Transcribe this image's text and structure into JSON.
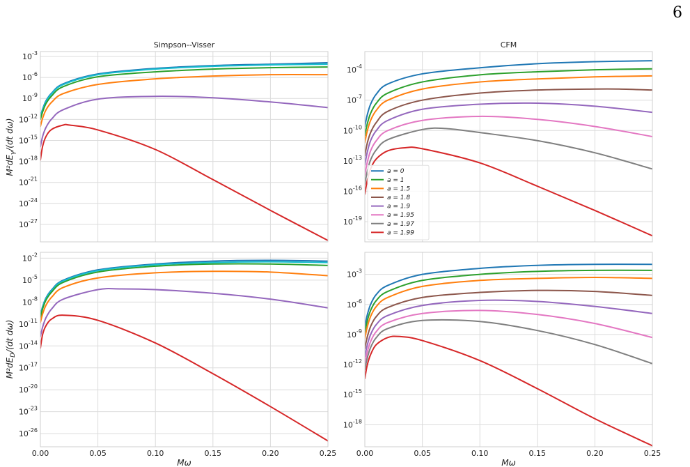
{
  "page_number": "6",
  "chart_data": [
    {
      "type": "line",
      "title": "Simpson--Visser",
      "xlabel": "",
      "ylabel": "M²dE_γ/(dt dω)",
      "yscale": "log",
      "xlim": [
        0,
        0.25
      ],
      "ylim_exp": [
        -29.5,
        -2.3
      ],
      "xticks": [
        "",
        "",
        "",
        "",
        "",
        ""
      ],
      "yticks_exp": [
        -3,
        -6,
        -9,
        -12,
        -15,
        -18,
        -21,
        -24,
        -27
      ],
      "grid": true,
      "series": [
        {
          "color": "#1f77b4",
          "x": [
            0,
            0.002,
            0.005,
            0.01,
            0.02,
            0.05,
            0.1,
            0.15,
            0.2,
            0.25
          ],
          "y_exp": [
            -11.6,
            -10.5,
            -9.3,
            -8.2,
            -6.9,
            -5.5,
            -4.7,
            -4.3,
            -4.1,
            -3.9
          ]
        },
        {
          "color": "#17becf",
          "x": [
            0,
            0.002,
            0.005,
            0.01,
            0.02,
            0.05,
            0.1,
            0.15,
            0.2,
            0.25
          ],
          "y_exp": [
            -11.7,
            -10.6,
            -9.4,
            -8.3,
            -7.0,
            -5.6,
            -4.8,
            -4.4,
            -4.2,
            -4.1
          ]
        },
        {
          "color": "#2ca02c",
          "x": [
            0,
            0.002,
            0.005,
            0.01,
            0.02,
            0.05,
            0.1,
            0.15,
            0.2,
            0.25
          ],
          "y_exp": [
            -12.0,
            -10.9,
            -9.7,
            -8.6,
            -7.3,
            -5.9,
            -5.2,
            -4.8,
            -4.6,
            -4.5
          ]
        },
        {
          "color": "#ff7f0e",
          "x": [
            0,
            0.002,
            0.005,
            0.01,
            0.02,
            0.05,
            0.1,
            0.15,
            0.2,
            0.25
          ],
          "y_exp": [
            -13.0,
            -11.8,
            -10.6,
            -9.5,
            -8.3,
            -7.0,
            -6.2,
            -5.8,
            -5.6,
            -5.6
          ]
        },
        {
          "color": "#9467bd",
          "x": [
            0,
            0.002,
            0.005,
            0.01,
            0.02,
            0.05,
            0.1,
            0.15,
            0.2,
            0.25
          ],
          "y_exp": [
            -15.9,
            -14.4,
            -13.1,
            -11.9,
            -10.6,
            -9.1,
            -8.7,
            -8.9,
            -9.5,
            -10.3
          ]
        },
        {
          "color": "#d62728",
          "x": [
            0,
            0.002,
            0.005,
            0.01,
            0.02,
            0.025,
            0.05,
            0.1,
            0.15,
            0.2,
            0.25
          ],
          "y_exp": [
            -17.8,
            -15.8,
            -14.4,
            -13.4,
            -12.8,
            -12.8,
            -13.5,
            -16.3,
            -20.6,
            -25.0,
            -29.3
          ]
        }
      ]
    },
    {
      "type": "line",
      "title": "CFM",
      "xlabel": "",
      "ylabel": "",
      "yscale": "log",
      "xlim": [
        0,
        0.25
      ],
      "ylim_exp": [
        -21.0,
        -2.2
      ],
      "xticks": [
        "",
        "",
        "",
        "",
        "",
        ""
      ],
      "yticks_exp": [
        -4,
        -7,
        -10,
        -13,
        -16,
        -19
      ],
      "grid": true,
      "legend": {
        "placement": "lower-left",
        "entries": [
          {
            "label": "a = 0",
            "color": "#1f77b4"
          },
          {
            "label": "a = 1",
            "color": "#2ca02c"
          },
          {
            "label": "a = 1.5",
            "color": "#ff7f0e"
          },
          {
            "label": "a = 1.8",
            "color": "#8c564b"
          },
          {
            "label": "a = 1.9",
            "color": "#9467bd"
          },
          {
            "label": "a = 1.95",
            "color": "#e377c2"
          },
          {
            "label": "a = 1.97",
            "color": "#7f7f7f"
          },
          {
            "label": "a = 1.99",
            "color": "#d62728"
          }
        ]
      },
      "series": [
        {
          "color": "#1f77b4",
          "x": [
            0,
            0.002,
            0.005,
            0.01,
            0.02,
            0.05,
            0.1,
            0.15,
            0.2,
            0.25
          ],
          "y_exp": [
            -9.6,
            -8.5,
            -7.4,
            -6.4,
            -5.4,
            -4.4,
            -3.8,
            -3.4,
            -3.2,
            -3.1
          ]
        },
        {
          "color": "#2ca02c",
          "x": [
            0,
            0.002,
            0.005,
            0.01,
            0.02,
            0.05,
            0.1,
            0.15,
            0.2,
            0.25
          ],
          "y_exp": [
            -10.5,
            -9.4,
            -8.3,
            -7.3,
            -6.3,
            -5.2,
            -4.5,
            -4.2,
            -4.0,
            -3.9
          ]
        },
        {
          "color": "#ff7f0e",
          "x": [
            0,
            0.002,
            0.005,
            0.01,
            0.02,
            0.05,
            0.1,
            0.15,
            0.2,
            0.25
          ],
          "y_exp": [
            -11.2,
            -10.1,
            -9.0,
            -8.0,
            -7.0,
            -5.9,
            -5.2,
            -4.9,
            -4.7,
            -4.6
          ]
        },
        {
          "color": "#8c564b",
          "x": [
            0,
            0.002,
            0.005,
            0.01,
            0.02,
            0.05,
            0.1,
            0.15,
            0.2,
            0.22,
            0.25
          ],
          "y_exp": [
            -12.5,
            -11.3,
            -10.2,
            -9.2,
            -8.1,
            -7.0,
            -6.3,
            -6.0,
            -5.9,
            -5.9,
            -6.0
          ]
        },
        {
          "color": "#9467bd",
          "x": [
            0,
            0.002,
            0.005,
            0.01,
            0.02,
            0.05,
            0.1,
            0.15,
            0.2,
            0.25
          ],
          "y_exp": [
            -13.4,
            -12.2,
            -11.0,
            -10.0,
            -9.0,
            -7.9,
            -7.4,
            -7.3,
            -7.6,
            -8.2
          ]
        },
        {
          "color": "#e377c2",
          "x": [
            0,
            0.002,
            0.005,
            0.01,
            0.02,
            0.05,
            0.1,
            0.15,
            0.2,
            0.25
          ],
          "y_exp": [
            -14.4,
            -13.2,
            -12.0,
            -11.0,
            -10.0,
            -9.0,
            -8.6,
            -8.9,
            -9.6,
            -10.6
          ]
        },
        {
          "color": "#7f7f7f",
          "x": [
            0,
            0.002,
            0.005,
            0.01,
            0.02,
            0.05,
            0.07,
            0.1,
            0.15,
            0.2,
            0.25
          ],
          "y_exp": [
            -15.3,
            -14.1,
            -12.9,
            -11.9,
            -10.9,
            -9.9,
            -9.8,
            -10.2,
            -11.0,
            -12.2,
            -13.8
          ]
        },
        {
          "color": "#d62728",
          "x": [
            0,
            0.002,
            0.005,
            0.01,
            0.02,
            0.035,
            0.05,
            0.1,
            0.15,
            0.2,
            0.25
          ],
          "y_exp": [
            -16.3,
            -15.0,
            -13.8,
            -12.8,
            -12.0,
            -11.7,
            -11.8,
            -13.2,
            -15.5,
            -17.9,
            -20.4
          ]
        }
      ]
    },
    {
      "type": "line",
      "title": "",
      "xlabel": "Mω",
      "ylabel": "M²dE_D/(dt dω)",
      "yscale": "log",
      "xlim": [
        0,
        0.25
      ],
      "ylim_exp": [
        -27.8,
        -1.2
      ],
      "xticks": [
        "0.00",
        "0.05",
        "0.10",
        "0.15",
        "0.20",
        "0.25"
      ],
      "yticks_exp": [
        -2,
        -5,
        -8,
        -11,
        -14,
        -17,
        -20,
        -23,
        -26
      ],
      "grid": true,
      "series": [
        {
          "color": "#1f77b4",
          "x": [
            0,
            0.002,
            0.005,
            0.01,
            0.02,
            0.05,
            0.1,
            0.15,
            0.2,
            0.25
          ],
          "y_exp": [
            -9.8,
            -8.6,
            -7.4,
            -6.3,
            -5.0,
            -3.6,
            -2.8,
            -2.4,
            -2.3,
            -2.4
          ]
        },
        {
          "color": "#17becf",
          "x": [
            0,
            0.002,
            0.005,
            0.01,
            0.02,
            0.05,
            0.1,
            0.15,
            0.2,
            0.25
          ],
          "y_exp": [
            -9.9,
            -8.7,
            -7.5,
            -6.4,
            -5.1,
            -3.7,
            -2.9,
            -2.6,
            -2.5,
            -2.6
          ]
        },
        {
          "color": "#2ca02c",
          "x": [
            0,
            0.002,
            0.005,
            0.01,
            0.02,
            0.05,
            0.1,
            0.15,
            0.2,
            0.25
          ],
          "y_exp": [
            -10.1,
            -8.9,
            -7.7,
            -6.6,
            -5.3,
            -3.9,
            -3.1,
            -2.8,
            -2.8,
            -3.0
          ]
        },
        {
          "color": "#ff7f0e",
          "x": [
            0,
            0.002,
            0.005,
            0.01,
            0.02,
            0.05,
            0.1,
            0.15,
            0.2,
            0.25
          ],
          "y_exp": [
            -10.8,
            -9.6,
            -8.4,
            -7.3,
            -6.0,
            -4.7,
            -4.0,
            -3.8,
            -3.9,
            -4.4
          ]
        },
        {
          "color": "#9467bd",
          "x": [
            0,
            0.002,
            0.005,
            0.01,
            0.02,
            0.05,
            0.07,
            0.1,
            0.15,
            0.2,
            0.25
          ],
          "y_exp": [
            -12.7,
            -11.4,
            -10.1,
            -8.9,
            -7.6,
            -6.3,
            -6.2,
            -6.3,
            -6.8,
            -7.6,
            -8.8
          ]
        },
        {
          "color": "#d62728",
          "x": [
            0,
            0.002,
            0.005,
            0.01,
            0.02,
            0.05,
            0.1,
            0.15,
            0.2,
            0.25
          ],
          "y_exp": [
            -14.3,
            -12.4,
            -11.2,
            -10.3,
            -9.8,
            -10.5,
            -13.6,
            -17.8,
            -22.3,
            -27.0
          ]
        }
      ]
    },
    {
      "type": "line",
      "title": "",
      "xlabel": "Mω",
      "ylabel": "",
      "yscale": "log",
      "xlim": [
        0,
        0.25
      ],
      "ylim_exp": [
        -20.2,
        -0.8
      ],
      "xticks": [
        "0.00",
        "0.05",
        "0.10",
        "0.15",
        "0.20",
        "0.25"
      ],
      "yticks_exp": [
        -3,
        -6,
        -9,
        -12,
        -15,
        -18
      ],
      "grid": true,
      "series": [
        {
          "color": "#1f77b4",
          "x": [
            0,
            0.002,
            0.005,
            0.01,
            0.02,
            0.05,
            0.1,
            0.15,
            0.2,
            0.25
          ],
          "y_exp": [
            -8.2,
            -7.1,
            -6.0,
            -5.0,
            -4.1,
            -3.0,
            -2.4,
            -2.1,
            -2.0,
            -2.0
          ]
        },
        {
          "color": "#2ca02c",
          "x": [
            0,
            0.002,
            0.005,
            0.01,
            0.02,
            0.05,
            0.1,
            0.15,
            0.2,
            0.25
          ],
          "y_exp": [
            -8.8,
            -7.7,
            -6.6,
            -5.6,
            -4.7,
            -3.6,
            -3.0,
            -2.7,
            -2.6,
            -2.6
          ]
        },
        {
          "color": "#ff7f0e",
          "x": [
            0,
            0.002,
            0.005,
            0.01,
            0.02,
            0.05,
            0.1,
            0.15,
            0.2,
            0.25
          ],
          "y_exp": [
            -9.4,
            -8.3,
            -7.2,
            -6.2,
            -5.3,
            -4.2,
            -3.6,
            -3.4,
            -3.3,
            -3.4
          ]
        },
        {
          "color": "#8c564b",
          "x": [
            0,
            0.002,
            0.005,
            0.01,
            0.02,
            0.05,
            0.1,
            0.15,
            0.2,
            0.25
          ],
          "y_exp": [
            -10.4,
            -9.3,
            -8.2,
            -7.2,
            -6.3,
            -5.3,
            -4.8,
            -4.6,
            -4.7,
            -5.1
          ]
        },
        {
          "color": "#9467bd",
          "x": [
            0,
            0.002,
            0.005,
            0.01,
            0.02,
            0.05,
            0.1,
            0.15,
            0.2,
            0.25
          ],
          "y_exp": [
            -11.2,
            -10.1,
            -9.0,
            -8.0,
            -7.1,
            -6.1,
            -5.6,
            -5.7,
            -6.2,
            -6.9
          ]
        },
        {
          "color": "#e377c2",
          "x": [
            0,
            0.002,
            0.005,
            0.01,
            0.02,
            0.05,
            0.1,
            0.15,
            0.2,
            0.25
          ],
          "y_exp": [
            -11.9,
            -10.8,
            -9.7,
            -8.7,
            -7.8,
            -6.9,
            -6.6,
            -7.0,
            -7.9,
            -9.3
          ]
        },
        {
          "color": "#7f7f7f",
          "x": [
            0,
            0.002,
            0.005,
            0.01,
            0.02,
            0.05,
            0.1,
            0.15,
            0.2,
            0.25
          ],
          "y_exp": [
            -12.5,
            -11.4,
            -10.3,
            -9.3,
            -8.4,
            -7.6,
            -7.7,
            -8.6,
            -10.0,
            -11.9
          ]
        },
        {
          "color": "#d62728",
          "x": [
            0,
            0.002,
            0.005,
            0.01,
            0.02,
            0.03,
            0.05,
            0.1,
            0.15,
            0.2,
            0.25
          ],
          "y_exp": [
            -13.4,
            -12.1,
            -11.0,
            -10.0,
            -9.3,
            -9.2,
            -9.6,
            -11.6,
            -14.4,
            -17.4,
            -20.1
          ]
        }
      ]
    }
  ]
}
